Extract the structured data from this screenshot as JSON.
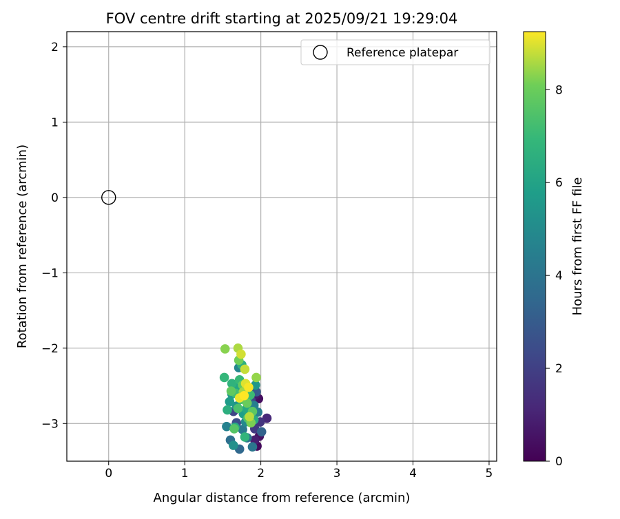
{
  "chart_data": {
    "type": "scatter",
    "title": "FOV centre drift starting at 2025/09/21 19:29:04",
    "xlabel": "Angular distance from reference (arcmin)",
    "ylabel": "Rotation from reference (arcmin)",
    "xlim": [
      -0.55,
      5.1
    ],
    "ylim": [
      -3.5,
      2.2
    ],
    "xticks": [
      0,
      1,
      2,
      3,
      4,
      5
    ],
    "yticks": [
      -3,
      -2,
      -1,
      0,
      1,
      2
    ],
    "xtick_labels": [
      "0",
      "1",
      "2",
      "3",
      "4",
      "5"
    ],
    "ytick_labels": [
      "−3",
      "−2",
      "−1",
      "0",
      "1",
      "2"
    ],
    "grid": true,
    "legend": {
      "position": "top-right",
      "entries": [
        "Reference platepar"
      ]
    },
    "reference_point": {
      "x": 0,
      "y": 0,
      "label": "Reference platepar"
    },
    "colorbar": {
      "label": "Hours from first FF file",
      "range": [
        0,
        9.25
      ],
      "ticks": [
        0,
        2,
        4,
        6,
        8
      ],
      "tick_labels": [
        "0",
        "2",
        "4",
        "6",
        "8"
      ],
      "colormap": "viridis"
    },
    "points": [
      {
        "x": 1.95,
        "y": -3.3,
        "h": 0.3
      },
      {
        "x": 1.98,
        "y": -3.17,
        "h": 0.5
      },
      {
        "x": 1.92,
        "y": -3.22,
        "h": 0.9
      },
      {
        "x": 2.08,
        "y": -2.93,
        "h": 1.2
      },
      {
        "x": 1.97,
        "y": -2.67,
        "h": 0.4
      },
      {
        "x": 1.93,
        "y": -2.62,
        "h": 0.7
      },
      {
        "x": 1.88,
        "y": -2.99,
        "h": 1.0
      },
      {
        "x": 1.99,
        "y": -2.98,
        "h": 1.6
      },
      {
        "x": 1.92,
        "y": -3.07,
        "h": 1.8
      },
      {
        "x": 1.87,
        "y": -2.69,
        "h": 2.1
      },
      {
        "x": 1.64,
        "y": -2.84,
        "h": 2.2
      },
      {
        "x": 1.68,
        "y": -2.99,
        "h": 2.5
      },
      {
        "x": 1.85,
        "y": -2.73,
        "h": 2.7
      },
      {
        "x": 1.94,
        "y": -2.58,
        "h": 3.0
      },
      {
        "x": 2.01,
        "y": -3.11,
        "h": 3.3
      },
      {
        "x": 1.72,
        "y": -3.34,
        "h": 3.5
      },
      {
        "x": 1.6,
        "y": -3.22,
        "h": 3.8
      },
      {
        "x": 1.82,
        "y": -3.19,
        "h": 3.9
      },
      {
        "x": 1.89,
        "y": -3.31,
        "h": 4.1
      },
      {
        "x": 1.76,
        "y": -3.08,
        "h": 4.2
      },
      {
        "x": 1.96,
        "y": -2.85,
        "h": 4.4
      },
      {
        "x": 1.91,
        "y": -2.76,
        "h": 4.5
      },
      {
        "x": 1.55,
        "y": -3.04,
        "h": 4.6
      },
      {
        "x": 1.71,
        "y": -2.26,
        "h": 4.8
      },
      {
        "x": 1.8,
        "y": -2.98,
        "h": 4.9
      },
      {
        "x": 1.86,
        "y": -2.92,
        "h": 5.0
      },
      {
        "x": 1.64,
        "y": -3.29,
        "h": 5.2
      },
      {
        "x": 1.78,
        "y": -2.56,
        "h": 5.3
      },
      {
        "x": 1.68,
        "y": -2.77,
        "h": 5.4
      },
      {
        "x": 1.93,
        "y": -2.49,
        "h": 5.5
      },
      {
        "x": 1.62,
        "y": -2.61,
        "h": 5.6
      },
      {
        "x": 1.59,
        "y": -2.71,
        "h": 5.7
      },
      {
        "x": 1.77,
        "y": -2.87,
        "h": 5.8
      },
      {
        "x": 1.84,
        "y": -2.64,
        "h": 5.9
      },
      {
        "x": 1.73,
        "y": -2.45,
        "h": 6.0
      },
      {
        "x": 1.69,
        "y": -2.54,
        "h": 6.1
      },
      {
        "x": 1.81,
        "y": -2.81,
        "h": 6.2
      },
      {
        "x": 1.66,
        "y": -3.05,
        "h": 6.3
      },
      {
        "x": 1.91,
        "y": -2.95,
        "h": 6.4
      },
      {
        "x": 1.56,
        "y": -2.82,
        "h": 6.5
      },
      {
        "x": 1.75,
        "y": -2.22,
        "h": 6.6
      },
      {
        "x": 1.62,
        "y": -2.47,
        "h": 6.7
      },
      {
        "x": 1.79,
        "y": -3.18,
        "h": 6.8
      },
      {
        "x": 1.52,
        "y": -2.39,
        "h": 6.9
      },
      {
        "x": 1.72,
        "y": -2.42,
        "h": 7.0
      },
      {
        "x": 1.86,
        "y": -2.62,
        "h": 7.1
      },
      {
        "x": 1.67,
        "y": -2.6,
        "h": 7.2
      },
      {
        "x": 1.74,
        "y": -2.68,
        "h": 7.3
      },
      {
        "x": 1.7,
        "y": -2.8,
        "h": 7.4
      },
      {
        "x": 1.83,
        "y": -2.93,
        "h": 7.5
      },
      {
        "x": 1.65,
        "y": -3.07,
        "h": 7.6
      },
      {
        "x": 1.89,
        "y": -2.84,
        "h": 7.7
      },
      {
        "x": 1.61,
        "y": -2.57,
        "h": 7.8
      },
      {
        "x": 1.76,
        "y": -2.49,
        "h": 7.9
      },
      {
        "x": 1.82,
        "y": -2.73,
        "h": 8.0
      },
      {
        "x": 1.71,
        "y": -2.16,
        "h": 8.1
      },
      {
        "x": 1.87,
        "y": -2.99,
        "h": 8.2
      },
      {
        "x": 1.53,
        "y": -2.01,
        "h": 8.3
      },
      {
        "x": 1.94,
        "y": -2.39,
        "h": 8.4
      },
      {
        "x": 1.77,
        "y": -2.58,
        "h": 8.5
      },
      {
        "x": 1.7,
        "y": -2.0,
        "h": 8.6
      },
      {
        "x": 1.85,
        "y": -2.91,
        "h": 8.7
      },
      {
        "x": 1.79,
        "y": -2.28,
        "h": 8.8
      },
      {
        "x": 1.74,
        "y": -2.08,
        "h": 8.9
      },
      {
        "x": 1.8,
        "y": -2.47,
        "h": 9.0
      },
      {
        "x": 1.72,
        "y": -2.66,
        "h": 9.1
      },
      {
        "x": 1.84,
        "y": -2.52,
        "h": 9.2
      },
      {
        "x": 1.78,
        "y": -2.63,
        "h": 9.25
      }
    ]
  }
}
